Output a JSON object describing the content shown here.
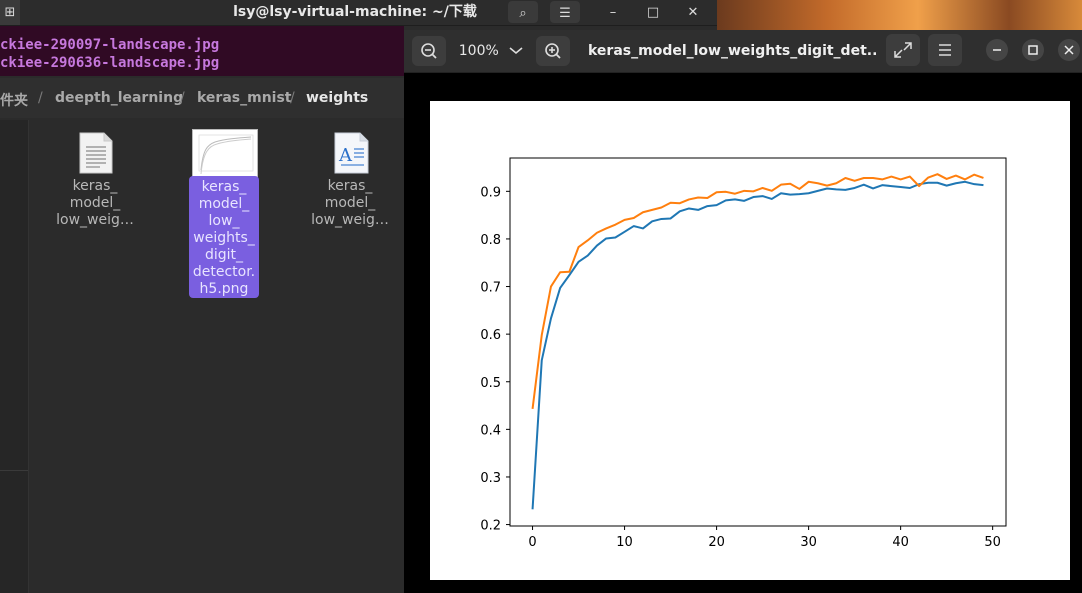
{
  "terminal": {
    "title": "lsy@lsy-virtual-machine: ~/下载",
    "lines": [
      "ckiee-290097-landscape.jpg",
      "ckiee-290636-landscape.jpg"
    ]
  },
  "file_manager": {
    "breadcrumbs": [
      "件夹",
      "deepth_learning",
      "keras_mnist",
      "weights"
    ],
    "files": [
      {
        "label": "keras_\nmodel_\nlow_weig…",
        "icon": "text-file-icon"
      },
      {
        "label": "keras_\nmodel_\nlow_\nweights_\ndigit_\ndetector.\nh5.png",
        "icon": "image-thumbnail",
        "selected": true
      },
      {
        "label": "keras_\nmodel_\nlow_weig…",
        "icon": "document-file-icon"
      }
    ]
  },
  "image_viewer": {
    "zoom": "100%",
    "title": "keras_model_low_weights_digit_det...",
    "icons": [
      "zoom-out-icon",
      "chevron-down-icon",
      "zoom-in-icon",
      "fullscreen-icon",
      "menu-icon",
      "minimize-icon",
      "maximize-icon",
      "close-icon"
    ]
  },
  "chart_data": {
    "type": "line",
    "title": "",
    "xlabel": "",
    "ylabel": "",
    "xlim": [
      -2.45,
      51.45
    ],
    "ylim": [
      0.197,
      0.97
    ],
    "xticks": [
      0,
      10,
      20,
      30,
      40,
      50
    ],
    "yticks": [
      0.2,
      0.3,
      0.4,
      0.5,
      0.6,
      0.7,
      0.8,
      0.9
    ],
    "grid": false,
    "x": [
      0,
      1,
      2,
      3,
      4,
      5,
      6,
      7,
      8,
      9,
      10,
      11,
      12,
      13,
      14,
      15,
      16,
      17,
      18,
      19,
      20,
      21,
      22,
      23,
      24,
      25,
      26,
      27,
      28,
      29,
      30,
      31,
      32,
      33,
      34,
      35,
      36,
      37,
      38,
      39,
      40,
      41,
      42,
      43,
      44,
      45,
      46,
      47,
      48,
      49
    ],
    "series": [
      {
        "color": "#1f77b4",
        "values": [
          0.232,
          0.545,
          0.633,
          0.697,
          0.724,
          0.752,
          0.765,
          0.786,
          0.801,
          0.803,
          0.815,
          0.827,
          0.822,
          0.837,
          0.842,
          0.843,
          0.858,
          0.864,
          0.861,
          0.869,
          0.871,
          0.881,
          0.883,
          0.88,
          0.888,
          0.89,
          0.884,
          0.896,
          0.893,
          0.894,
          0.896,
          0.901,
          0.906,
          0.904,
          0.903,
          0.907,
          0.914,
          0.906,
          0.913,
          0.911,
          0.909,
          0.907,
          0.915,
          0.918,
          0.918,
          0.912,
          0.917,
          0.92,
          0.915,
          0.913
        ]
      },
      {
        "color": "#ff7f0e",
        "values": [
          0.443,
          0.598,
          0.7,
          0.73,
          0.731,
          0.783,
          0.797,
          0.813,
          0.822,
          0.83,
          0.84,
          0.844,
          0.856,
          0.861,
          0.866,
          0.876,
          0.875,
          0.883,
          0.887,
          0.886,
          0.898,
          0.899,
          0.895,
          0.901,
          0.9,
          0.907,
          0.901,
          0.914,
          0.916,
          0.905,
          0.92,
          0.917,
          0.912,
          0.917,
          0.928,
          0.922,
          0.928,
          0.928,
          0.925,
          0.931,
          0.925,
          0.931,
          0.911,
          0.929,
          0.936,
          0.926,
          0.933,
          0.925,
          0.935,
          0.928
        ]
      }
    ]
  }
}
